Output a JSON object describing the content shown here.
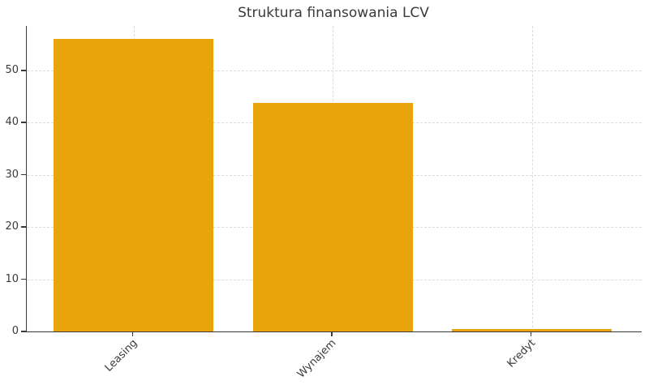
{
  "chart_data": {
    "type": "bar",
    "title": "Struktura finansowania LCV",
    "categories": [
      "Leasing",
      "Wynajem",
      "Kredyt"
    ],
    "values": [
      56,
      43.8,
      0.5
    ],
    "xlabel": "",
    "ylabel": "",
    "ylim": [
      0,
      58.5
    ],
    "yticks": [
      0,
      10,
      20,
      30,
      40,
      50
    ],
    "grid": true,
    "grid_linestyle": "dashed",
    "legend": "none",
    "x_tick_rotation_deg": 45,
    "colors": {
      "bar_fill": "#e8a30d",
      "axis": "#3a3a3a",
      "grid": "#dcdcdc",
      "title_text": "#3a3a3a",
      "tick_text": "#3a3a3a",
      "background": "#ffffff"
    }
  }
}
